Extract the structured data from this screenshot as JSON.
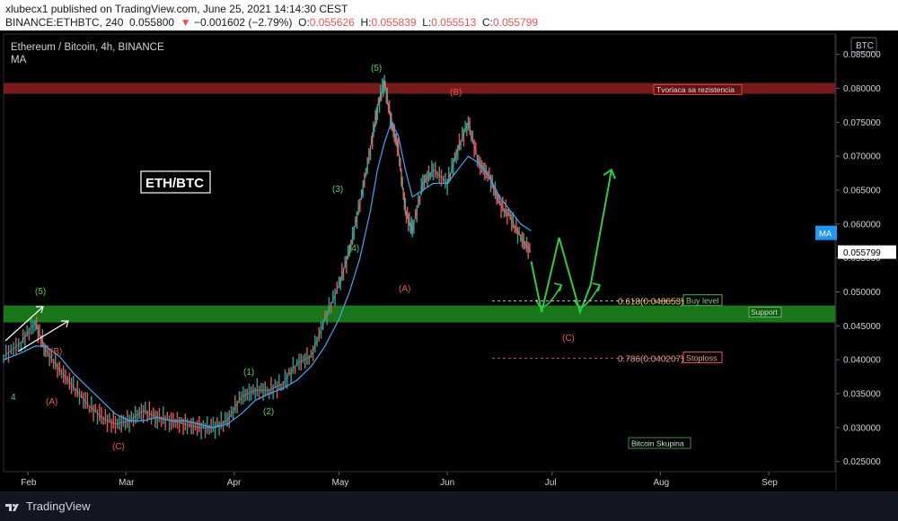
{
  "header": {
    "published": "xlubecx1 published on TradingView.com, June 25, 2021 14:14:30 CEST",
    "symbol_interval": "BINANCE:ETHBTC, 240",
    "last": "0.055800",
    "change_arrow": "▼",
    "change": "−0.001602 (−2.79%)",
    "o_label": "O:",
    "o": "0.055626",
    "h_label": "H:",
    "h": "0.055839",
    "l_label": "L:",
    "l": "0.055513",
    "c_label": "C:",
    "c": "0.055799"
  },
  "legend": {
    "title": "Ethereum / Bitcoin, 4h, BINANCE",
    "indicator": "MA"
  },
  "footer": {
    "brand": "TradingView"
  },
  "colors": {
    "bg": "#000000",
    "up": "#26a69a",
    "down": "#ef5350",
    "green_wave": "#4caf50",
    "zone_green": "#1b7a1b",
    "zone_red": "#7a1c1c",
    "ma": "#42a5f5"
  },
  "chart_data": {
    "type": "line",
    "title": "Ethereum / Bitcoin, 4h, BINANCE",
    "currency": "BTC",
    "x_ticks": [
      "Feb",
      "Mar",
      "Apr",
      "May",
      "Jun",
      "Jul",
      "Aug",
      "Sep"
    ],
    "y_ticks": [
      "0.085000",
      "0.080000",
      "0.075000",
      "0.070000",
      "0.065000",
      "0.060000",
      "0.055000",
      "0.050000",
      "0.045000",
      "0.040000",
      "0.035000",
      "0.030000",
      "0.025000"
    ],
    "ylim": [
      0.0235,
      0.088
    ],
    "x": [
      "2021-01-25",
      "2021-01-30",
      "2021-02-03",
      "2021-02-06",
      "2021-02-10",
      "2021-02-14",
      "2021-02-18",
      "2021-02-22",
      "2021-02-26",
      "2021-03-02",
      "2021-03-06",
      "2021-03-10",
      "2021-03-14",
      "2021-03-18",
      "2021-03-22",
      "2021-03-26",
      "2021-03-30",
      "2021-04-03",
      "2021-04-07",
      "2021-04-11",
      "2021-04-15",
      "2021-04-19",
      "2021-04-23",
      "2021-04-27",
      "2021-05-01",
      "2021-05-04",
      "2021-05-07",
      "2021-05-10",
      "2021-05-12",
      "2021-05-14",
      "2021-05-16",
      "2021-05-18",
      "2021-05-20",
      "2021-05-22",
      "2021-05-25",
      "2021-05-28",
      "2021-06-01",
      "2021-06-04",
      "2021-06-07",
      "2021-06-10",
      "2021-06-13",
      "2021-06-16",
      "2021-06-19",
      "2021-06-22",
      "2021-06-25"
    ],
    "series": [
      {
        "values": [
          0.0405,
          0.0425,
          0.0455,
          0.0415,
          0.0385,
          0.036,
          0.0335,
          0.0315,
          0.0305,
          0.031,
          0.0325,
          0.0315,
          0.031,
          0.0305,
          0.03,
          0.03,
          0.031,
          0.0345,
          0.0355,
          0.0355,
          0.0365,
          0.0395,
          0.0405,
          0.046,
          0.051,
          0.056,
          0.063,
          0.071,
          0.077,
          0.081,
          0.075,
          0.071,
          0.062,
          0.059,
          0.066,
          0.068,
          0.066,
          0.071,
          0.075,
          0.069,
          0.067,
          0.063,
          0.061,
          0.058,
          0.0558
        ]
      },
      {
        "name": "MA",
        "values": [
          0.04,
          0.041,
          0.042,
          0.042,
          0.0405,
          0.038,
          0.036,
          0.034,
          0.032,
          0.031,
          0.031,
          0.0315,
          0.031,
          0.031,
          0.0305,
          0.03,
          0.0305,
          0.032,
          0.034,
          0.035,
          0.0358,
          0.037,
          0.039,
          0.042,
          0.046,
          0.05,
          0.055,
          0.062,
          0.068,
          0.072,
          0.075,
          0.073,
          0.068,
          0.064,
          0.065,
          0.066,
          0.066,
          0.068,
          0.07,
          0.069,
          0.067,
          0.064,
          0.062,
          0.06,
          0.059
        ]
      }
    ],
    "projection": {
      "label": "C",
      "x": [
        "2021-06-25",
        "2021-06-28",
        "2021-07-03",
        "2021-07-09",
        "2021-07-12",
        "2021-07-18"
      ],
      "values": [
        0.0545,
        0.047,
        0.058,
        0.047,
        0.051,
        0.068
      ]
    },
    "zones": [
      {
        "label": "Tvoriaca sa rezistencia",
        "from": 0.0792,
        "to": 0.0808,
        "color": "#8b1e1e"
      },
      {
        "label": "Support",
        "from": 0.0455,
        "to": 0.048,
        "color": "#1e8b1e"
      }
    ],
    "fib_levels": [
      {
        "ratio": "0.618",
        "value": "0.048653",
        "tag": "Buy level",
        "price": 0.048653
      },
      {
        "ratio": "0.786",
        "value": "0.040207",
        "tag": "Stoploss",
        "price": 0.040207
      }
    ],
    "wave_labels_green": [
      "4",
      "(5)",
      "(1)",
      "(2)",
      "(3)",
      "(4)",
      "(5)"
    ],
    "wave_labels_red": [
      "(A)",
      "(B)",
      "(C)",
      "(A)",
      "(B)",
      "(C)"
    ],
    "annotations": [
      "ETH/BTC",
      "Bitcoin Skupina"
    ],
    "price_tags": {
      "ma": "MA",
      "last": "0.055799"
    }
  }
}
